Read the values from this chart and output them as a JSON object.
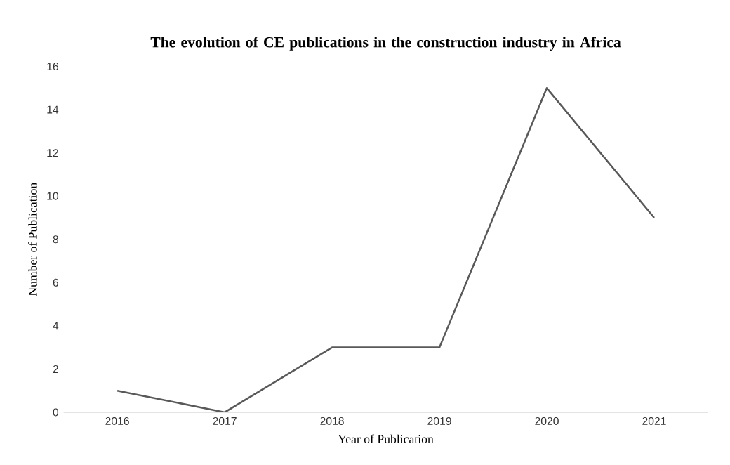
{
  "chart_data": {
    "type": "line",
    "title": "The evolution of CE publications in the construction industry in Africa",
    "xlabel": "Year of Publication",
    "ylabel": "Number of Publication",
    "categories": [
      "2016",
      "2017",
      "2018",
      "2019",
      "2020",
      "2021"
    ],
    "values": [
      1,
      0,
      3,
      3,
      15,
      9
    ],
    "color": "#595959",
    "ylim": [
      0,
      16
    ],
    "yticks": [
      0,
      2,
      4,
      6,
      8,
      10,
      12,
      14,
      16
    ],
    "grid": false,
    "marker": "none",
    "line_style": "solid"
  }
}
